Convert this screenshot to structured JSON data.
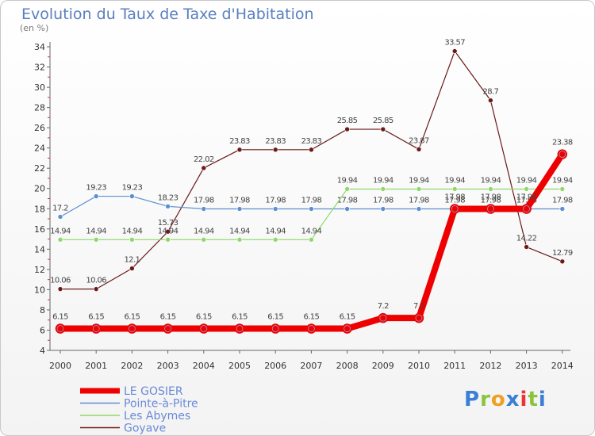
{
  "chart_data": {
    "type": "line",
    "title": "Evolution du Taux de Taxe d'Habitation",
    "unit_label": "(en %)",
    "x": [
      "2000",
      "2001",
      "2002",
      "2003",
      "2004",
      "2005",
      "2006",
      "2007",
      "2008",
      "2009",
      "2010",
      "2011",
      "2012",
      "2013",
      "2014"
    ],
    "ylim": [
      4,
      34
    ],
    "yticks": [
      4,
      6,
      8,
      10,
      12,
      14,
      16,
      18,
      20,
      22,
      24,
      26,
      28,
      30,
      32,
      34
    ],
    "grid": false,
    "legend_position": "bottom-left",
    "series": [
      {
        "name": "Goyave",
        "color": "#6b1a1a",
        "width": 1.2,
        "values": [
          10.06,
          10.06,
          12.1,
          15.73,
          22.02,
          23.83,
          23.83,
          23.83,
          25.85,
          25.85,
          23.87,
          33.57,
          28.7,
          14.22,
          12.79
        ],
        "labels": [
          "10.06",
          "10.06",
          "12.1",
          "15.73",
          "22.02",
          "23.83",
          "23.83",
          "23.83",
          "25.85",
          "25.85",
          "23.87",
          "33.57",
          "28.7",
          "14.22",
          "12.79"
        ]
      },
      {
        "name": "Pointe-à-Pitre",
        "color": "#5b8fd0",
        "width": 1.2,
        "values": [
          17.2,
          19.23,
          19.23,
          18.23,
          17.98,
          17.98,
          17.98,
          17.98,
          17.98,
          17.98,
          17.98,
          17.98,
          17.98,
          17.98,
          17.98
        ],
        "labels": [
          "17.2",
          "19.23",
          "19.23",
          "18.23",
          "17.98",
          "17.98",
          "17.98",
          "17.98",
          "17.98",
          "17.98",
          "17.98",
          "17.98",
          "17.98",
          "17.98",
          "17.98"
        ]
      },
      {
        "name": "Les Abymes",
        "color": "#8fd86a",
        "width": 1.2,
        "values": [
          14.94,
          14.94,
          14.94,
          14.94,
          14.94,
          14.94,
          14.94,
          14.94,
          19.94,
          19.94,
          19.94,
          19.94,
          19.94,
          19.94,
          19.94
        ],
        "labels": [
          "14.94",
          "14.94",
          "14.94",
          "14.94",
          "14.94",
          "14.94",
          "14.94",
          "14.94",
          "19.94",
          "19.94",
          "19.94",
          "19.94",
          "19.94",
          "19.94",
          "19.94"
        ]
      },
      {
        "name": "LE GOSIER",
        "color": "#ee0000",
        "width": 8,
        "values": [
          6.15,
          6.15,
          6.15,
          6.15,
          6.15,
          6.15,
          6.15,
          6.15,
          6.15,
          7.2,
          7.2,
          17.98,
          17.98,
          17.98,
          23.38
        ],
        "labels": [
          "6.15",
          "6.15",
          "6.15",
          "6.15",
          "6.15",
          "6.15",
          "6.15",
          "6.15",
          "6.15",
          "7.2",
          "7.2",
          "17.98",
          "17.98",
          "17.98",
          "23.38"
        ]
      }
    ],
    "legend": [
      "LE GOSIER",
      "Pointe-à-Pitre",
      "Les Abymes",
      "Goyave"
    ]
  },
  "logo": {
    "letters": [
      "P",
      "r",
      "o",
      "x",
      "i",
      "t",
      "i"
    ],
    "colors": [
      "#3a7fd5",
      "#8ac43f",
      "#f0a020",
      "#3a7fd5",
      "#e33",
      "#8ac43f",
      "#3a7fd5"
    ]
  }
}
